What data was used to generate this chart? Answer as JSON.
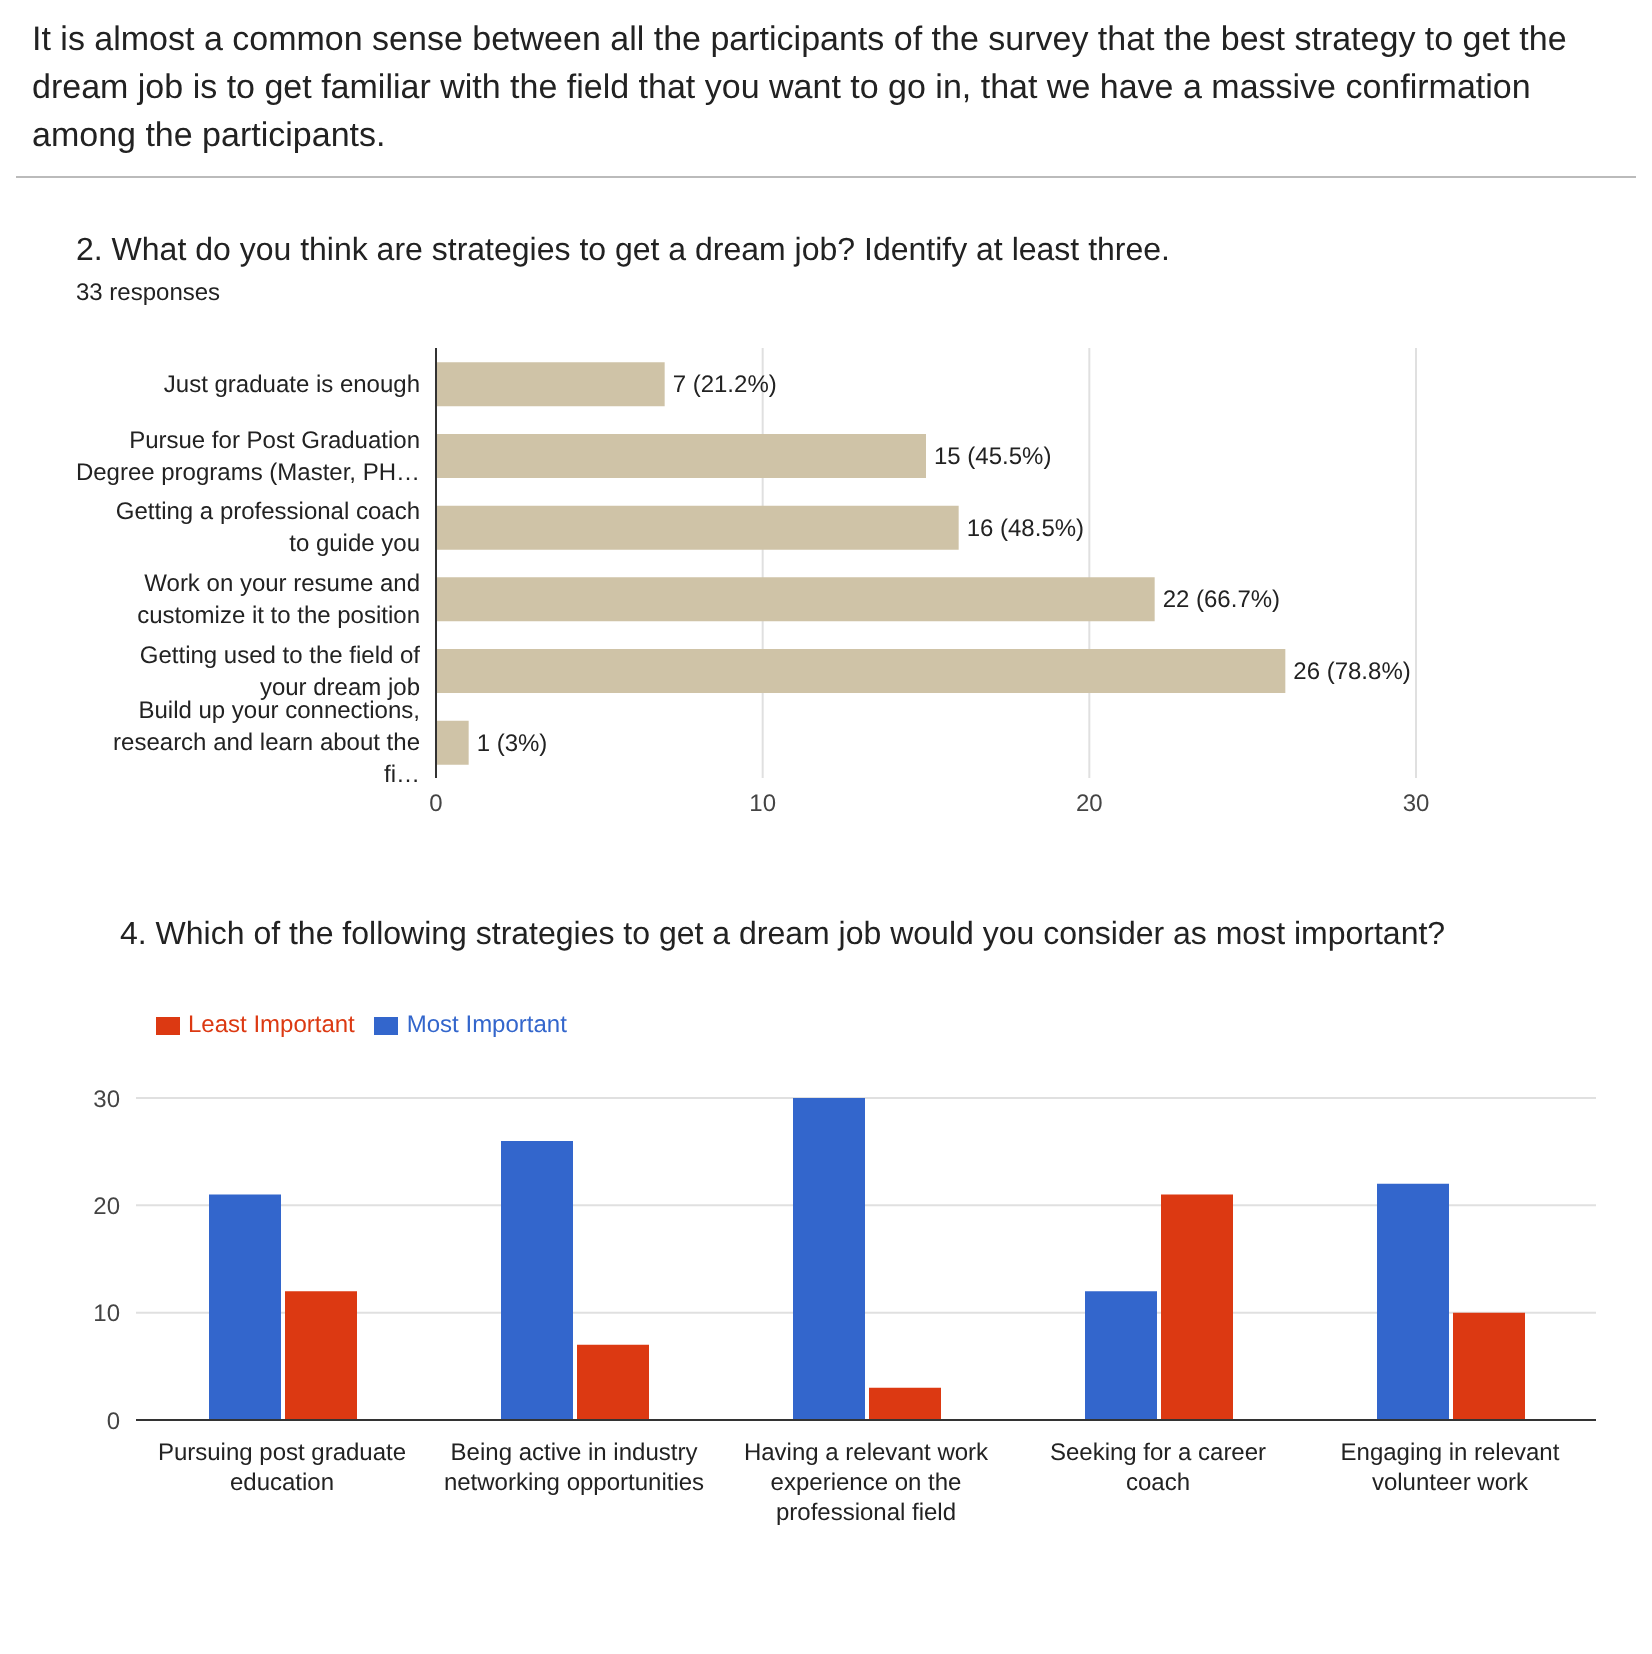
{
  "chart_data": [
    {
      "type": "bar",
      "orientation": "horizontal",
      "annotations": [
        "It is almost a common sense between all the participants of the survey that the best strategy to get the dream job is to get familiar with the field that you want to go in, that we have a massive confirmation among the participants."
      ],
      "title": "2. What do you think are strategies to get a dream job? Identify at least three.",
      "subtitle": "33 responses",
      "categories": [
        "Just graduate is enough",
        "Pursue for Post Graduation Degree programs (Master, PH…",
        "Getting a professional coach to guide you",
        "Work on your resume and customize it to the position",
        "Getting used to the field of your dream job",
        "Build up your connections, research and learn about the fi…"
      ],
      "values": [
        7,
        15,
        16,
        22,
        26,
        1
      ],
      "color": "#cfc3a7",
      "value_labels": [
        "7 (21.2%)",
        "15 (45.5%)",
        "16 (48.5%)",
        "22 (66.7%)",
        "26 (78.8%)",
        "1 (3%)"
      ],
      "xlim": [
        0,
        30
      ],
      "xticks": [
        0,
        10,
        20,
        30
      ],
      "grid": "x",
      "legend": false
    },
    {
      "type": "bar",
      "title": "4. Which of the following strategies to get a dream job would you consider as most important?",
      "categories": [
        "Pursuing post graduate education",
        "Being active in industry networking opportunities",
        "Having a relevant work experience on the professional field",
        "Seeking for a career coach",
        "Engaging in relevant volunteer work"
      ],
      "series": [
        {
          "name": "Most Important",
          "color": "#3366cc",
          "values": [
            21,
            26,
            30,
            12,
            22
          ]
        },
        {
          "name": "Least Important",
          "color": "#dc3912",
          "values": [
            12,
            7,
            3,
            21,
            10
          ]
        }
      ],
      "ylim": [
        0,
        30
      ],
      "yticks": [
        0,
        10,
        20,
        30
      ],
      "grid": "y",
      "legend": "top left"
    }
  ]
}
